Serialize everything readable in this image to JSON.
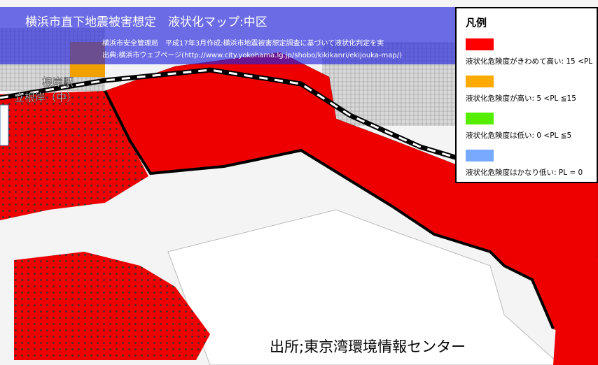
{
  "header": {
    "title": "横浜市直下地震被害想定　液状化マップ:中区",
    "lines": [
      "横浜市安全管理局　平成17年3月作成:横浜市地震被害想定調査に基づいて液状化判定を実",
      "出典:横浜市ウェブページ(http://www.city.yokohama.lg.jp/shobo/kikikanri/ekijouka-map/)"
    ]
  },
  "map_labels": [
    "根岸駅",
    "立根岸（中）"
  ],
  "legend": {
    "title": "凡例",
    "items": [
      {
        "label": "液状化危険度がきわめて高い: 15 <PL",
        "color": "#ff0000"
      },
      {
        "label": "液状化危険度が高い: 5 <PL ≦15",
        "color": "#ffaa00"
      },
      {
        "label": "液状化危険度は低い: 0 <PL ≦5",
        "color": "#55ee00"
      },
      {
        "label": "液状化危険度はかなり低い: PL = 0",
        "color": "#77aaff"
      }
    ]
  },
  "source": "出所;東京湾環境情報センター"
}
